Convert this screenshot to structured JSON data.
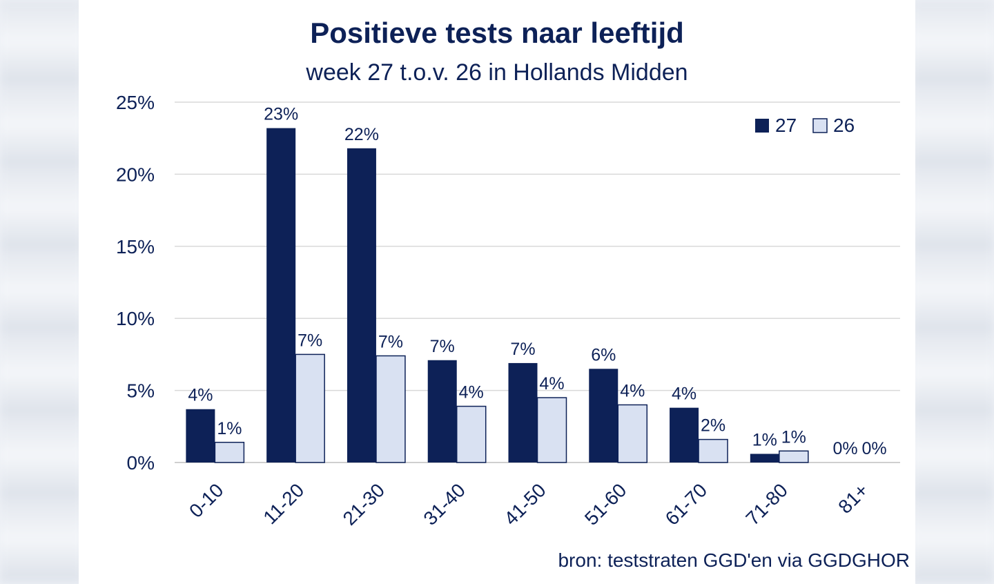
{
  "chart_data": {
    "type": "bar",
    "title": "Positieve tests naar leeftijd",
    "subtitle": "week 27 t.o.v. 26 in Hollands Midden",
    "source": "bron: teststraten GGD'en via GGDGHOR",
    "categories": [
      "0-10",
      "11-20",
      "21-30",
      "31-40",
      "41-50",
      "51-60",
      "61-70",
      "71-80",
      "81+"
    ],
    "series": [
      {
        "name": "27",
        "color": "#0d2157",
        "values": [
          3.7,
          23.2,
          21.8,
          7.1,
          6.9,
          6.5,
          3.8,
          0.6,
          0.0
        ],
        "labels": [
          "4%",
          "23%",
          "22%",
          "7%",
          "7%",
          "6%",
          "4%",
          "1%",
          "0%"
        ]
      },
      {
        "name": "26",
        "color": "#d9e1f2",
        "values": [
          1.4,
          7.5,
          7.4,
          3.9,
          4.5,
          4.0,
          1.6,
          0.8,
          0.0
        ],
        "labels": [
          "1%",
          "7%",
          "7%",
          "4%",
          "4%",
          "4%",
          "2%",
          "1%",
          "0%"
        ]
      }
    ],
    "y_ticks": [
      "0%",
      "5%",
      "10%",
      "15%",
      "20%",
      "25%"
    ],
    "ylim": [
      0,
      25
    ],
    "grid": true,
    "legend": "top-right"
  }
}
